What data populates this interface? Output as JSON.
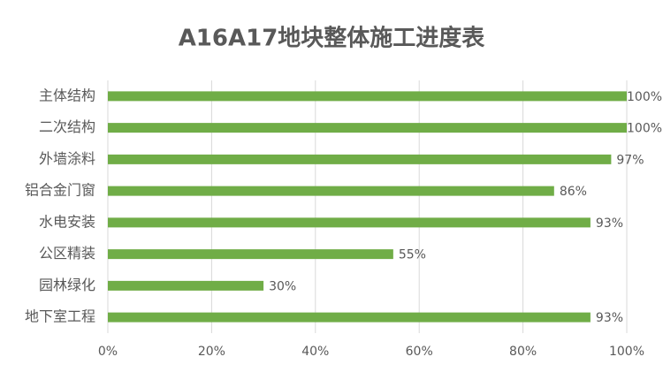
{
  "chart_data": {
    "type": "barh",
    "title": "A16A17地块整体施工进度表",
    "categories": [
      "主体结构",
      "二次结构",
      "外墙涂料",
      "铝合金门窗",
      "水电安装",
      "公区精装",
      "园林绿化",
      "地下室工程"
    ],
    "values": [
      100,
      100,
      97,
      86,
      93,
      55,
      30,
      93
    ],
    "value_labels": [
      "100%",
      "100%",
      "97%",
      "86%",
      "93%",
      "55%",
      "30%",
      "93%"
    ],
    "color": "#70ad47",
    "xlim": [
      0,
      100
    ],
    "xticks": [
      {
        "value": 0,
        "label": "0%"
      },
      {
        "value": 20,
        "label": "20%"
      },
      {
        "value": 40,
        "label": "40%"
      },
      {
        "value": 60,
        "label": "60%"
      },
      {
        "value": 80,
        "label": "80%"
      },
      {
        "value": 100,
        "label": "100%"
      }
    ],
    "grid": true
  }
}
